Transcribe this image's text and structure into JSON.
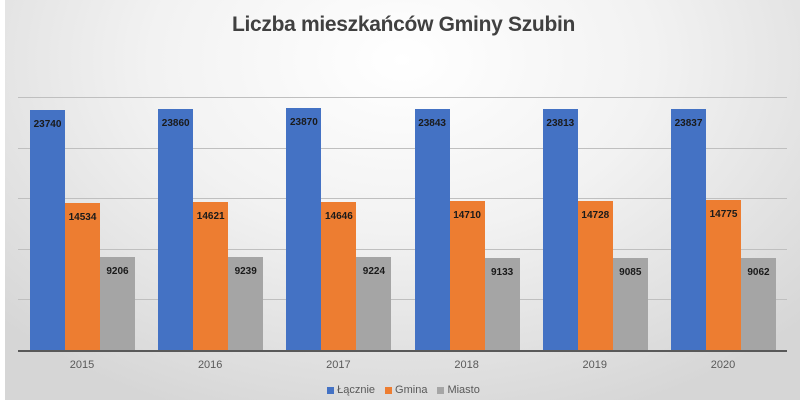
{
  "chart_data": {
    "type": "bar",
    "title": "Liczba mieszkańców Gminy Szubin",
    "xlabel": "",
    "ylabel": "",
    "ylim": [
      0,
      25000
    ],
    "grid": true,
    "legend_position": "bottom",
    "categories": [
      "2015",
      "2016",
      "2017",
      "2018",
      "2019",
      "2020"
    ],
    "series": [
      {
        "name": "Łącznie",
        "color": "#4472c4",
        "values": [
          23740,
          23860,
          23870,
          23843,
          23813,
          23837
        ]
      },
      {
        "name": "Gmina",
        "color": "#ed7d31",
        "values": [
          14534,
          14621,
          14646,
          14710,
          14728,
          14775
        ]
      },
      {
        "name": "Miasto",
        "color": "#a5a5a5",
        "values": [
          9206,
          9239,
          9224,
          9133,
          9085,
          9062
        ]
      }
    ]
  }
}
